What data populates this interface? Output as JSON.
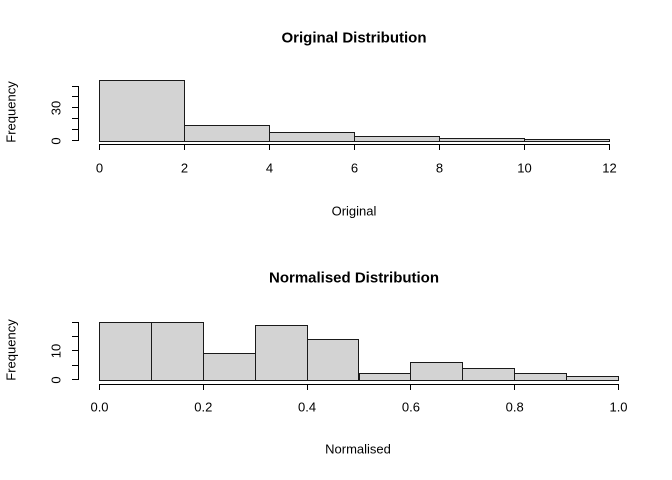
{
  "window": {
    "background": "#ffffff"
  },
  "chart_data": [
    {
      "type": "bar",
      "subtype": "histogram",
      "title": "Original Distribution",
      "xlabel": "Original",
      "ylabel": "Frequency",
      "bin_edges": [
        0,
        2,
        4,
        6,
        8,
        10,
        12
      ],
      "values": [
        55,
        14,
        7,
        4,
        2,
        1
      ],
      "xlim": [
        0,
        12
      ],
      "ylim": [
        0,
        55
      ],
      "x_ticks": [
        {
          "value": 0,
          "label": "0"
        },
        {
          "value": 2,
          "label": "2"
        },
        {
          "value": 4,
          "label": "4"
        },
        {
          "value": 6,
          "label": "6"
        },
        {
          "value": 8,
          "label": "8"
        },
        {
          "value": 10,
          "label": "10"
        },
        {
          "value": 12,
          "label": "12"
        }
      ],
      "y_ticks": [
        {
          "value": 0,
          "label": "0"
        },
        {
          "value": 10,
          "label": ""
        },
        {
          "value": 20,
          "label": ""
        },
        {
          "value": 30,
          "label": "30"
        },
        {
          "value": 40,
          "label": ""
        },
        {
          "value": 50,
          "label": ""
        }
      ],
      "bar_fill": "#d3d3d3",
      "bar_stroke": "#1a1a1a",
      "grid": "off",
      "legend": "none"
    },
    {
      "type": "bar",
      "subtype": "histogram",
      "title": "Normalised Distribution",
      "xlabel": "Normalised",
      "ylabel": "Frequency",
      "bin_edges": [
        0.0,
        0.1,
        0.2,
        0.3,
        0.4,
        0.5,
        0.6,
        0.7,
        0.8,
        0.9,
        1.0
      ],
      "values": [
        20,
        20,
        9,
        19,
        14,
        2,
        6,
        4,
        2,
        1
      ],
      "xlim": [
        0.0,
        1.0
      ],
      "ylim": [
        0,
        20
      ],
      "x_ticks": [
        {
          "value": 0.0,
          "label": "0.0"
        },
        {
          "value": 0.2,
          "label": "0.2"
        },
        {
          "value": 0.4,
          "label": "0.4"
        },
        {
          "value": 0.6,
          "label": "0.6"
        },
        {
          "value": 0.8,
          "label": "0.8"
        },
        {
          "value": 1.0,
          "label": "1.0"
        }
      ],
      "y_ticks": [
        {
          "value": 0,
          "label": "0"
        },
        {
          "value": 5,
          "label": ""
        },
        {
          "value": 10,
          "label": "10"
        },
        {
          "value": 15,
          "label": ""
        },
        {
          "value": 20,
          "label": ""
        }
      ],
      "bar_fill": "#d3d3d3",
      "bar_stroke": "#1a1a1a",
      "grid": "off",
      "legend": "none"
    }
  ]
}
